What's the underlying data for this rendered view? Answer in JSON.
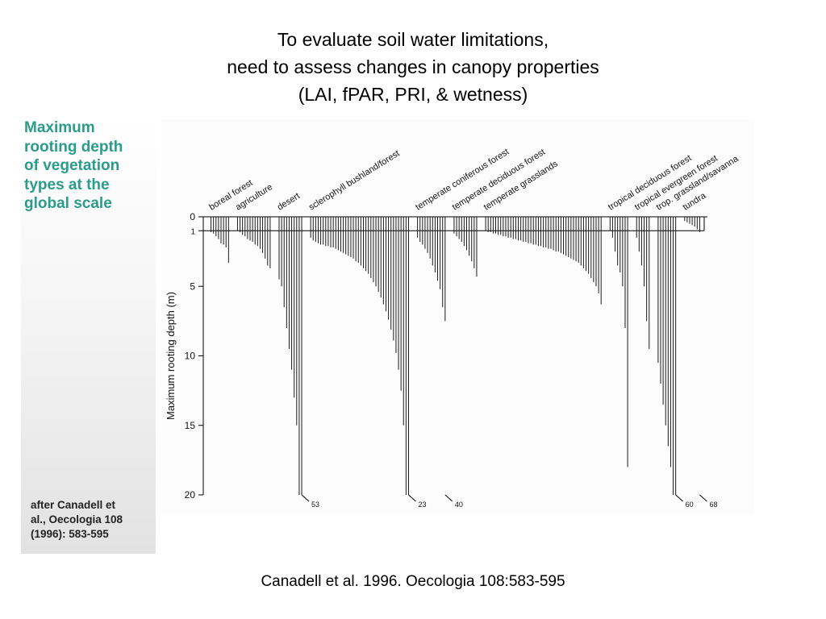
{
  "title": {
    "lines": [
      "To evaluate soil water limitations,",
      "need to assess changes in canopy properties",
      "(LAI, fPAR, PRI, & wetness)"
    ]
  },
  "side_panel": {
    "heading_lines": [
      "Maximum",
      "rooting depth",
      "of vegetation",
      "types at the",
      "global scale"
    ],
    "citation_lines": [
      "after Canadell et",
      "al., Oecologia 108",
      "(1996): 583-595"
    ],
    "heading_color": "#2b9b8a"
  },
  "footer": {
    "citation": "Canadell et al. 1996. Oecologia 108:583-595"
  },
  "chart_data": {
    "type": "bar",
    "orientation": "downward",
    "ylabel": "Maximum rooting depth (m)",
    "yticks": [
      0,
      1,
      5,
      10,
      15,
      20
    ],
    "ylim": [
      0,
      20
    ],
    "reference_line": 1,
    "biomes": [
      {
        "name": "boreal forest",
        "depths": [
          1.1,
          1.2,
          1.4,
          1.6,
          1.9,
          2.0,
          2.2,
          3.3
        ]
      },
      {
        "name": "agriculture",
        "depths": [
          1.0,
          1.1,
          1.3,
          1.4,
          1.6,
          1.7,
          1.8,
          2.0,
          2.1,
          2.3,
          2.6,
          3.0,
          3.5,
          3.7
        ]
      },
      {
        "name": "desert",
        "depths": [
          4.5,
          5.0,
          6.5,
          8.0,
          9.5,
          11.0,
          13.0,
          15.0,
          20.0,
          20.0
        ],
        "truncated_label": "53"
      },
      {
        "name": "sclerophyll bushland/forest",
        "depths": [
          1.5,
          1.7,
          1.8,
          1.9,
          2.0,
          2.0,
          2.1,
          2.1,
          2.2,
          2.2,
          2.3,
          2.4,
          2.5,
          2.6,
          2.7,
          2.8,
          2.9,
          3.0,
          3.2,
          3.3,
          3.5,
          3.7,
          3.9,
          4.1,
          4.4,
          4.7,
          5.0,
          5.4,
          5.8,
          6.3,
          6.8,
          7.4,
          8.1,
          8.9,
          9.8,
          11.0,
          12.5,
          15.0,
          20.0,
          20.0
        ],
        "truncated_label": "23"
      },
      {
        "name": "temperate coniferous forest",
        "depths": [
          1.5,
          1.8,
          2.0,
          2.3,
          2.6,
          3.0,
          3.5,
          4.0,
          4.6,
          5.2,
          6.5,
          7.5
        ],
        "truncated_label": "40"
      },
      {
        "name": "temperate deciduous forest",
        "depths": [
          1.2,
          1.4,
          1.6,
          1.8,
          2.1,
          2.4,
          2.8,
          3.2,
          3.7,
          4.3
        ]
      },
      {
        "name": "temperate grasslands",
        "depths": [
          1.0,
          1.1,
          1.1,
          1.2,
          1.2,
          1.3,
          1.3,
          1.4,
          1.4,
          1.5,
          1.5,
          1.6,
          1.6,
          1.7,
          1.7,
          1.8,
          1.8,
          1.9,
          1.9,
          2.0,
          2.0,
          2.1,
          2.1,
          2.2,
          2.2,
          2.3,
          2.3,
          2.4,
          2.5,
          2.5,
          2.6,
          2.7,
          2.8,
          2.9,
          3.0,
          3.1,
          3.2,
          3.3,
          3.5,
          3.7,
          3.9,
          4.1,
          4.4,
          4.7,
          5.0,
          5.5,
          6.3
        ]
      },
      {
        "name": "tropical deciduous forest",
        "depths": [
          1.0,
          1.5,
          2.5,
          3.5,
          4.0,
          5.0,
          8.0,
          18.0
        ]
      },
      {
        "name": "tropical evergreen forest",
        "depths": [
          1.5,
          2.5,
          3.5,
          5.0,
          7.5,
          9.5
        ]
      },
      {
        "name": "trop. grassland/savanna",
        "depths": [
          10.5,
          12.0,
          13.5,
          15.0,
          16.5,
          18.0,
          20.0,
          20.0
        ],
        "truncated_label": "60"
      },
      {
        "name": "tundra",
        "depths": [
          0.3,
          0.4,
          0.5,
          0.6,
          0.7,
          0.9,
          1.1
        ],
        "truncated_label": "68"
      }
    ]
  }
}
